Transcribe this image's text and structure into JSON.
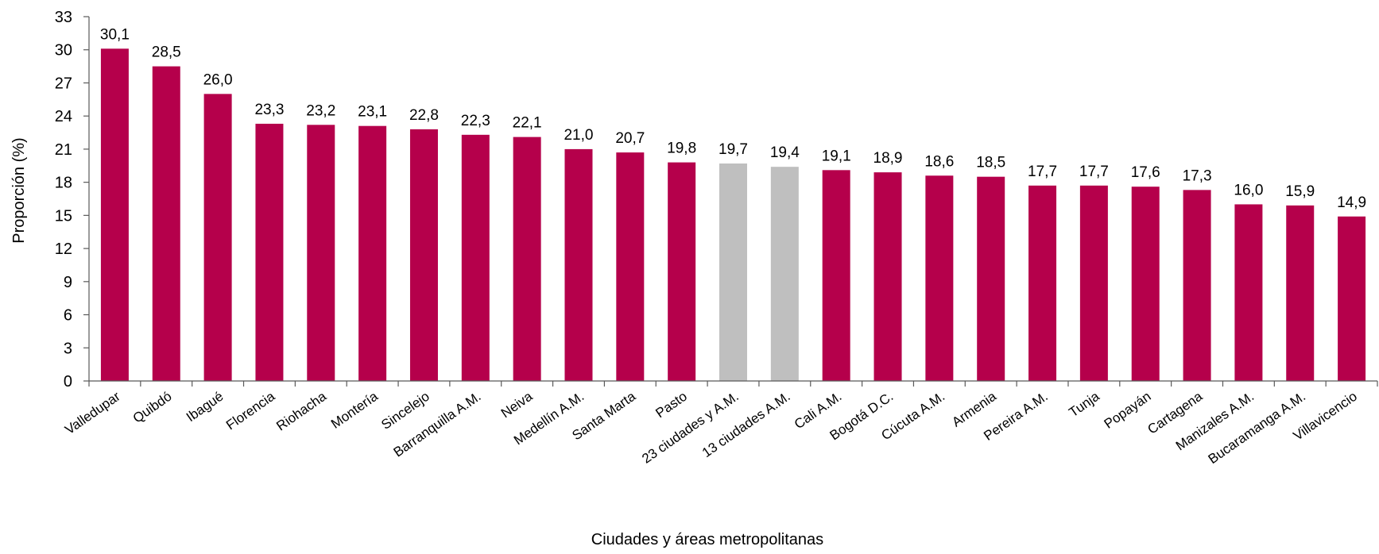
{
  "chart_data": {
    "type": "bar",
    "title": "",
    "xlabel": "Ciudades y áreas metropolitanas",
    "ylabel": "Proporción (%)",
    "ylim": [
      0,
      33
    ],
    "yticks": [
      0,
      3,
      6,
      9,
      12,
      15,
      18,
      21,
      24,
      27,
      30,
      33
    ],
    "grid": false,
    "legend": "none",
    "categories": [
      "Valledupar",
      "Quibdó",
      "Ibagué",
      "Florencia",
      "Riohacha",
      "Montería",
      "Sincelejo",
      "Barranquilla A.M.",
      "Neiva",
      "Medellín A.M.",
      "Santa Marta",
      "Pasto",
      "23 ciudades y A.M.",
      "13 ciudades A.M.",
      "Cali A.M.",
      "Bogotá D.C.",
      "Cúcuta A.M.",
      "Armenia",
      "Pereira A.M.",
      "Tunja",
      "Popayán",
      "Cartagena",
      "Manizales A.M.",
      "Bucaramanga A.M.",
      "Villavicencio"
    ],
    "values": [
      30.1,
      28.5,
      26.0,
      23.3,
      23.2,
      23.1,
      22.8,
      22.3,
      22.1,
      21.0,
      20.7,
      19.8,
      19.7,
      19.4,
      19.1,
      18.9,
      18.6,
      18.5,
      17.7,
      17.7,
      17.6,
      17.3,
      16.0,
      15.9,
      14.9
    ],
    "value_labels": [
      "30,1",
      "28,5",
      "26,0",
      "23,3",
      "23,2",
      "23,1",
      "22,8",
      "22,3",
      "22,1",
      "21,0",
      "20,7",
      "19,8",
      "19,7",
      "19,4",
      "19,1",
      "18,9",
      "18,6",
      "18,5",
      "17,7",
      "17,7",
      "17,6",
      "17,3",
      "16,0",
      "15,9",
      "14,9"
    ],
    "highlight_categories": [
      "23 ciudades y A.M.",
      "13 ciudades A.M."
    ],
    "colors": {
      "bar": "#B5004B",
      "highlight": "#BFBFBF",
      "axis": "#595959"
    }
  }
}
